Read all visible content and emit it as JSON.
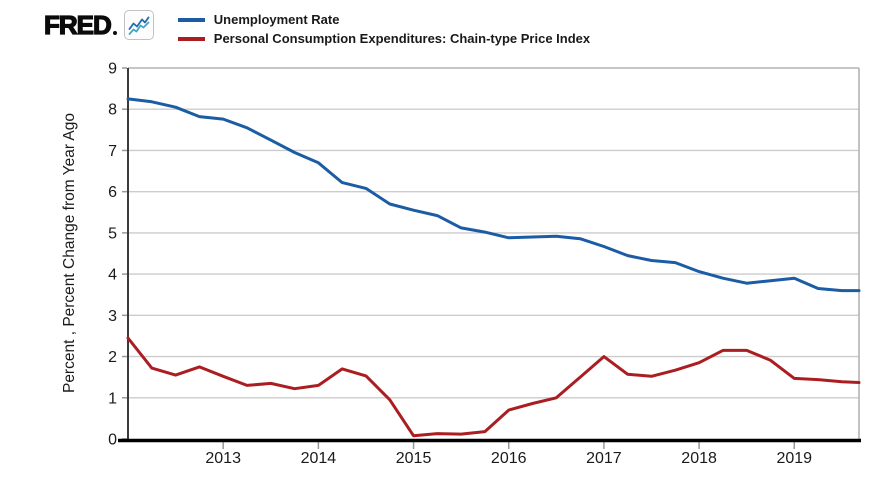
{
  "header": {
    "logo_text": "FRED",
    "logo_icon": "fred-zigzag-chart-icon"
  },
  "legend": {
    "items": [
      {
        "label": "Unemployment Rate",
        "color": "#1b5ca5"
      },
      {
        "label": "Personal Consumption Expenditures: Chain-type Price Index",
        "color": "#aa1e22"
      }
    ]
  },
  "chart_data": {
    "type": "line",
    "title": "",
    "xlabel": "",
    "ylabel": "Percent , Percent Change from Year Ago",
    "ylim": [
      0,
      9
    ],
    "xlim": [
      2012,
      2019.68
    ],
    "grid": "horizontal",
    "legend_position": "top-left",
    "y_ticks": [
      0,
      1,
      2,
      3,
      4,
      5,
      6,
      7,
      8,
      9
    ],
    "x_ticks": [
      2013,
      2014,
      2015,
      2016,
      2017,
      2018,
      2019
    ],
    "x": [
      2012.0,
      2012.25,
      2012.5,
      2012.75,
      2013.0,
      2013.25,
      2013.5,
      2013.75,
      2014.0,
      2014.25,
      2014.5,
      2014.75,
      2015.0,
      2015.25,
      2015.5,
      2015.75,
      2016.0,
      2016.25,
      2016.5,
      2016.75,
      2017.0,
      2017.25,
      2017.5,
      2017.75,
      2018.0,
      2018.25,
      2018.5,
      2018.75,
      2019.0,
      2019.25,
      2019.5,
      2019.68
    ],
    "series": [
      {
        "name": "Unemployment Rate",
        "color": "#1b5ca5",
        "values": [
          8.25,
          8.18,
          8.05,
          7.82,
          7.76,
          7.55,
          7.25,
          6.95,
          6.7,
          6.22,
          6.08,
          5.7,
          5.55,
          5.42,
          5.12,
          5.02,
          4.88,
          4.9,
          4.92,
          4.86,
          4.67,
          4.45,
          4.33,
          4.28,
          4.06,
          3.9,
          3.78,
          3.84,
          3.9,
          3.65,
          3.6,
          3.6
        ]
      },
      {
        "name": "Personal Consumption Expenditures: Chain-type Price Index",
        "color": "#aa1e22",
        "values": [
          2.45,
          1.72,
          1.55,
          1.75,
          1.52,
          1.3,
          1.35,
          1.22,
          1.3,
          1.7,
          1.53,
          0.95,
          0.08,
          0.13,
          0.12,
          0.18,
          0.7,
          0.86,
          1.0,
          1.5,
          2.0,
          1.57,
          1.52,
          1.67,
          1.85,
          2.15,
          2.15,
          1.91,
          1.47,
          1.44,
          1.39,
          1.37
        ]
      }
    ],
    "colors": {
      "gridline": "#cccccc",
      "plot_border": "#b3b3b3",
      "left_axis": "#3a3a3a",
      "bottom_axis": "#000000",
      "tick": "#999999",
      "tick_text": "#1a1a1a"
    }
  }
}
